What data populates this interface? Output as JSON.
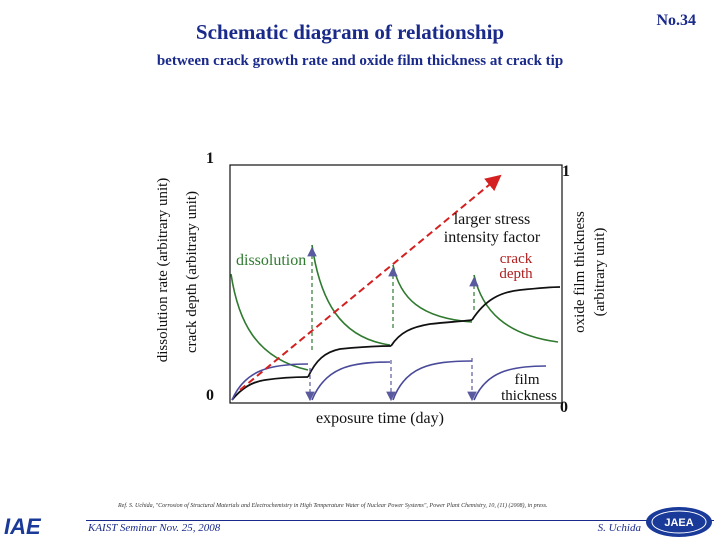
{
  "header": {
    "title": "Schematic diagram of relationship",
    "subtitle": "between crack growth rate and oxide film thickness at crack tip",
    "slide_number": "No.34"
  },
  "diagram": {
    "left_axis_label_outer": "dissolution rate (arbitrary unit)",
    "left_axis_label_inner": "crack depth (arbitrary unit)",
    "right_axis_label_line1": "oxide film thickness",
    "right_axis_label_line2": "(arbitrary unit)",
    "x_axis_label": "exposure time (day)",
    "left_top_tick": "1",
    "left_bottom_tick": "0",
    "right_top_tick": "1",
    "right_bottom_tick": "0",
    "label_dissolution": "dissolution",
    "label_stress_line1": "larger stress",
    "label_stress_line2": "intensity factor",
    "label_crack_line1": "crack",
    "label_crack_line2": "depth",
    "label_film_line1": "film",
    "label_film_line2": "thickness",
    "colors": {
      "dissolution": "#2f7a2f",
      "crack_depth": "#111111",
      "film_thickness": "#4a4a9a",
      "stress_arrow": "#d42020",
      "drop_arrows": "#5a5aa0"
    }
  },
  "footer": {
    "reference": "Ref. S. Uchida, \"Corrosion of Structural Materials and Electrochemistry in High Temperature Water of Nuclear Power Systems\", Power Plant Chemistry, 10, (11) (2008), in press.",
    "seminar": "KAIST Seminar  Nov. 25, 2008",
    "author": "S. Uchida",
    "logo_left_text": "IAE",
    "logo_right_text": "JAEA"
  }
}
